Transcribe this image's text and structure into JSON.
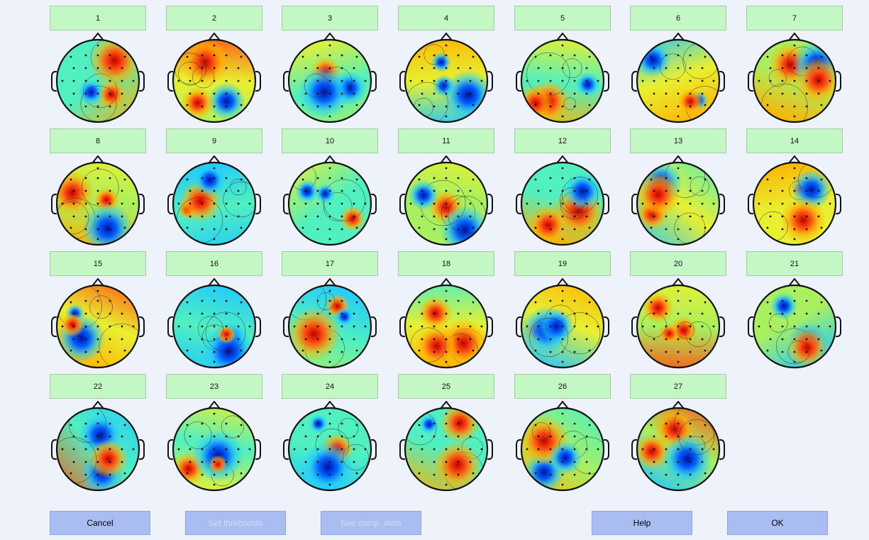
{
  "components": [
    "1",
    "2",
    "3",
    "4",
    "5",
    "6",
    "7",
    "8",
    "9",
    "10",
    "11",
    "12",
    "13",
    "14",
    "15",
    "16",
    "17",
    "18",
    "19",
    "20",
    "21",
    "22",
    "23",
    "24",
    "25",
    "26",
    "27"
  ],
  "buttons": {
    "cancel": "Cancel",
    "set_thresholds": "Set threhsolds",
    "comp_stats": "See comp. stats",
    "help": "Help",
    "ok": "OK"
  }
}
